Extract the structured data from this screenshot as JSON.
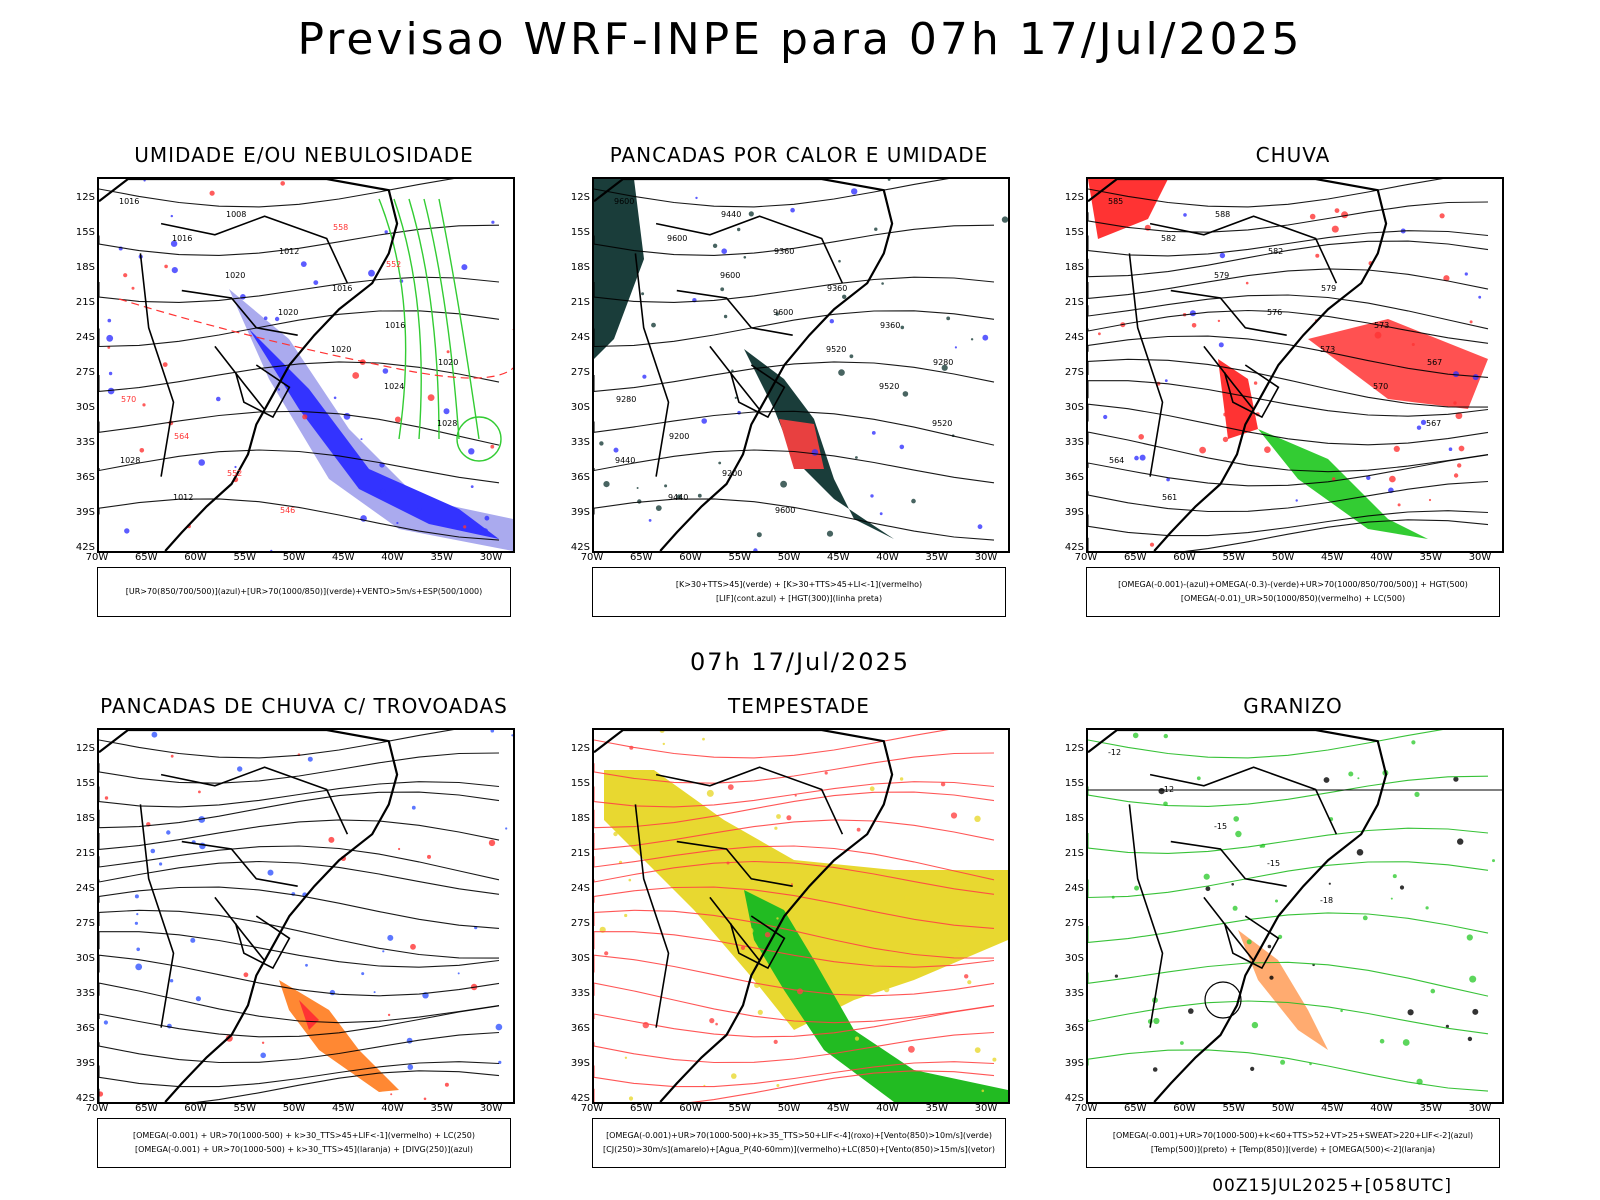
{
  "title": "Previsao WRF-INPE  para 07h 17/Jul/2025",
  "mid_title": "07h 17/Jul/2025",
  "footer": "00Z15JUL2025+[058UTC]",
  "lat_labels": [
    "12S",
    "15S",
    "18S",
    "21S",
    "24S",
    "27S",
    "30S",
    "33S",
    "36S",
    "39S",
    "42S"
  ],
  "lon_labels": [
    "70W",
    "65W",
    "60W",
    "55W",
    "50W",
    "45W",
    "40W",
    "35W",
    "30W"
  ],
  "panels": [
    {
      "title": "UMIDADE E/OU NEBULOSIDADE",
      "legend": [
        "[UR>70(850/700/500)](azul)+[UR>70(1000/850)](verde)+VENTO>5m/s+ESP(500/1000)"
      ],
      "colors": {
        "a": "#3333ff",
        "b": "#33cc33",
        "c": "#ff3333"
      },
      "contour_labels": [
        "1016",
        "1016",
        "1020",
        "1020",
        "1020",
        "1024",
        "1028",
        "1028",
        "1012",
        "1008",
        "1012",
        "1016",
        "1016",
        "1020",
        "570",
        "564",
        "552",
        "546",
        "558",
        "552"
      ]
    },
    {
      "title": "PANCADAS POR CALOR E UMIDADE",
      "legend": [
        "[K>30+TTS>45](verde) + [K>30+TTS>45+LI<-1](vermelho)",
        "[LIF](cont.azul) + [HGT(300)](linha preta)"
      ],
      "colors": {
        "a": "#1a3d3a",
        "b": "#e84040",
        "c": "#3333ff"
      },
      "contour_labels": [
        "9600",
        "9600",
        "9600",
        "9600",
        "9520",
        "9520",
        "9520",
        "9440",
        "9440",
        "9440",
        "9360",
        "9360",
        "9360",
        "9280",
        "9280",
        "9200",
        "9200",
        "9600"
      ]
    },
    {
      "title": "CHUVA",
      "legend": [
        "[OMEGA(-0.001)-(azul)+OMEGA(-0.3)-(verde)+UR>70(1000/850/700/500)] + HGT(500)",
        "[OMEGA(-0.01)_UR>50(1000/850)(vermelho) + LC(500)"
      ],
      "colors": {
        "a": "#ff3333",
        "b": "#33cc33",
        "c": "#3333ff"
      },
      "contour_labels": [
        "585",
        "582",
        "579",
        "576",
        "573",
        "570",
        "567",
        "564",
        "561",
        "588",
        "582",
        "579",
        "573",
        "567"
      ]
    },
    {
      "title": "PANCADAS DE CHUVA C/ TROVOADAS",
      "legend": [
        "[OMEGA(-0.001) + UR>70(1000-500) + k>30_TTS>45+LIF<-1](vermelho) + LC(250)",
        "[OMEGA(-0.001) + UR>70(1000-500) + k>30_TTS>45](laranja) + [DIVG(250)](azul)"
      ],
      "colors": {
        "a": "#3355ff",
        "b": "#ff8833",
        "c": "#ff3333"
      },
      "contour_labels": []
    },
    {
      "title": "TEMPESTADE",
      "legend": [
        "[OMEGA(-0.001)+UR>70(1000-500)+k>35_TTS>50+LIF<-4](roxo)+[Vento(850)>10m/s](verde)",
        "[CJ(250)>30m/s](amarelo)+[Agua_P(40-60mm)](vermelho)+LC(850)+[Vento(850)>15m/s](vetor)"
      ],
      "colors": {
        "a": "#e8d830",
        "b": "#22bb22",
        "c": "#ff4444"
      },
      "contour_labels": []
    },
    {
      "title": "GRANIZO",
      "legend": [
        "[OMEGA(-0.001)+UR>70(1000-500)+k<60+TTS>52+VT>25+SWEAT>220+LIF<-2](azul)",
        "[Temp(500)](preto) + [Temp(850)](verde) + [OMEGA(500)<-2](laranja)"
      ],
      "colors": {
        "a": "#33cc33",
        "b": "#ff8833",
        "c": "#000000"
      },
      "contour_labels": [
        "-12",
        "-12",
        "-15",
        "-15",
        "-18"
      ]
    }
  ]
}
